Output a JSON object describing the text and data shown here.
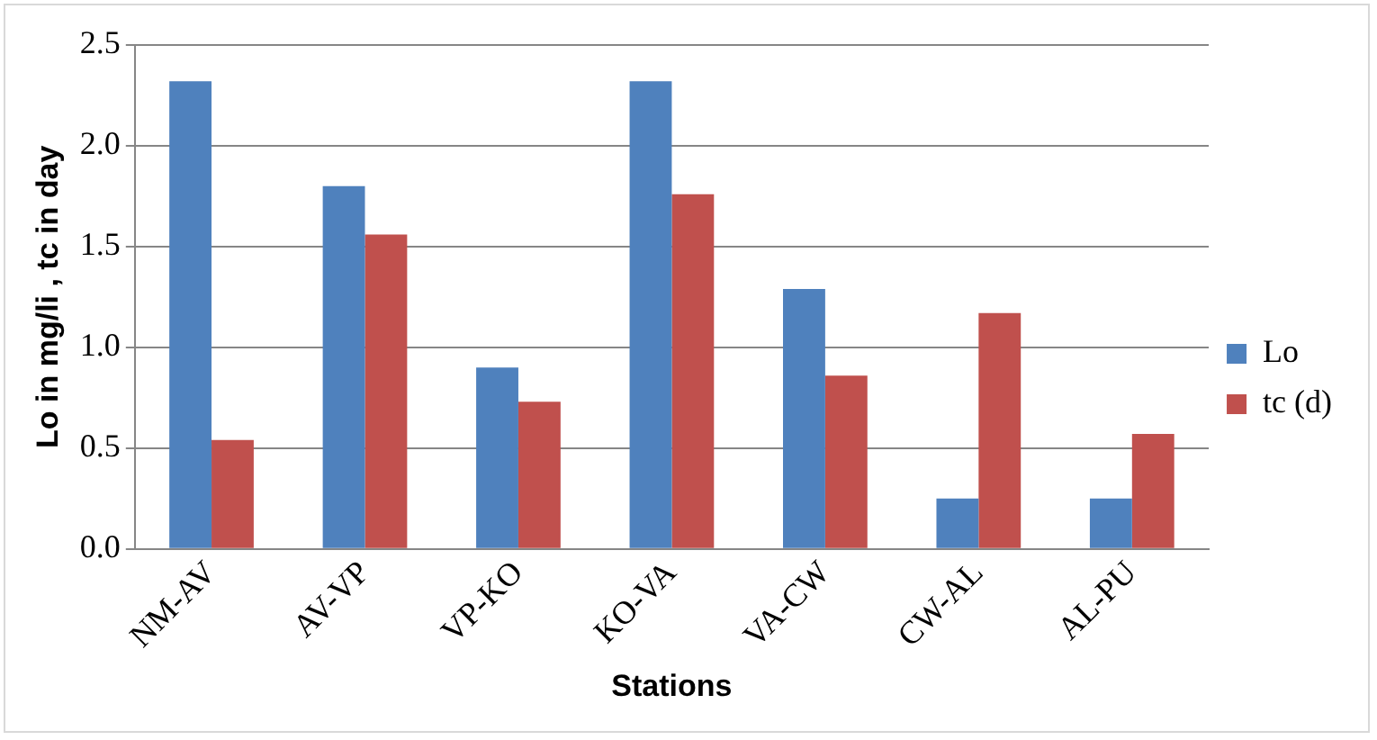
{
  "chart_data": {
    "type": "bar",
    "xlabel": "Stations",
    "ylabel": "Lo in mg/li , tc in day",
    "categories": [
      "NM-AV",
      "AV-VP",
      "VP-KO",
      "KO-VA",
      "VA-CW",
      "CW-AL",
      "AL-PU"
    ],
    "series": [
      {
        "name": "Lo",
        "color": "#4f81bd",
        "values": [
          2.32,
          1.8,
          0.9,
          2.32,
          1.29,
          0.25,
          0.25
        ]
      },
      {
        "name": "tc (d)",
        "color": "#c0504d",
        "values": [
          0.54,
          1.56,
          0.73,
          1.76,
          0.86,
          1.17,
          0.57
        ]
      }
    ],
    "ylim": [
      0,
      2.5
    ],
    "yticks": [
      {
        "value": 0,
        "label": "0.0"
      },
      {
        "value": 0.5,
        "label": "0.5"
      },
      {
        "value": 1,
        "label": "1.0"
      },
      {
        "value": 1.5,
        "label": "1.5"
      },
      {
        "value": 2,
        "label": "2.0"
      },
      {
        "value": 2.5,
        "label": "2.5"
      }
    ],
    "grid": "y",
    "legend": "right"
  }
}
